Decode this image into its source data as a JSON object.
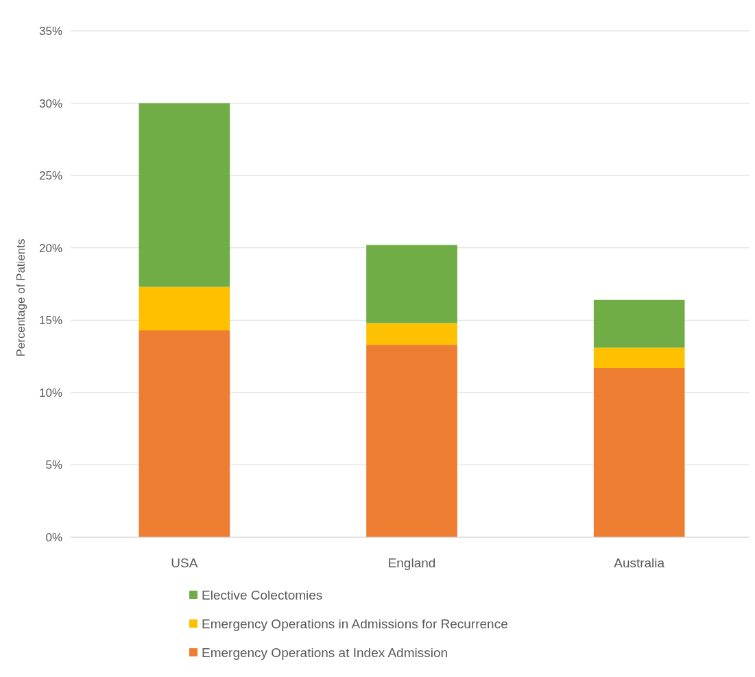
{
  "chart_data": {
    "type": "bar",
    "stacked": true,
    "ylabel": "Percentage of Patients",
    "categories": [
      "USA",
      "England",
      "Australia"
    ],
    "series": [
      {
        "name": "Emergency Operations at Index Admission",
        "color": "#ed7d31",
        "values": [
          14.3,
          13.3,
          11.7
        ]
      },
      {
        "name": "Emergency Operations in Admissions for Recurrence",
        "color": "#ffc000",
        "values": [
          3.0,
          1.5,
          1.4
        ]
      },
      {
        "name": "Elective  Colectomies",
        "color": "#70ad47",
        "values": [
          12.7,
          5.4,
          3.3
        ]
      }
    ],
    "ylim": [
      0,
      35
    ],
    "yticks": [
      {
        "value": 0,
        "label": "0%"
      },
      {
        "value": 5,
        "label": "5%"
      },
      {
        "value": 10,
        "label": "10%"
      },
      {
        "value": 15,
        "label": "15%"
      },
      {
        "value": 20,
        "label": "20%"
      },
      {
        "value": 25,
        "label": "25%"
      },
      {
        "value": 30,
        "label": "30%"
      },
      {
        "value": 35,
        "label": "35%"
      }
    ],
    "grid": "y",
    "legend": "bottom"
  }
}
